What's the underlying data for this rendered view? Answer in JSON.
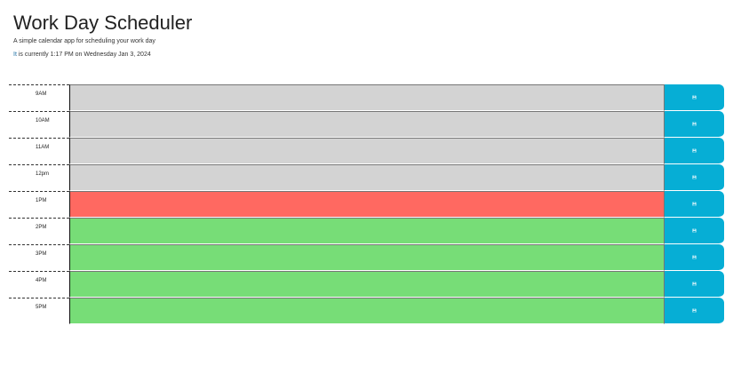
{
  "header": {
    "title": "Work Day Scheduler",
    "lead": "A simple calendar app for scheduling your work day",
    "current_day_prefix": "It",
    "current_day_rest": " is currently 1:17 PM on Wednesday Jan 3, 2024"
  },
  "rows": [
    {
      "hour": "9AM",
      "text": "",
      "status": "past"
    },
    {
      "hour": "10AM",
      "text": "",
      "status": "past"
    },
    {
      "hour": "11AM",
      "text": "",
      "status": "past"
    },
    {
      "hour": "12pm",
      "text": "",
      "status": "past"
    },
    {
      "hour": "1PM",
      "text": "",
      "status": "present"
    },
    {
      "hour": "2PM",
      "text": "",
      "status": "future"
    },
    {
      "hour": "3PM",
      "text": "",
      "status": "future"
    },
    {
      "hour": "4PM",
      "text": "",
      "status": "future"
    },
    {
      "hour": "5PM",
      "text": "",
      "status": "future"
    }
  ],
  "save_icon": "save-icon",
  "colors": {
    "past": "#d3d3d3",
    "present": "#ff6961",
    "future": "#77dd77",
    "save_button": "#06aed5"
  }
}
